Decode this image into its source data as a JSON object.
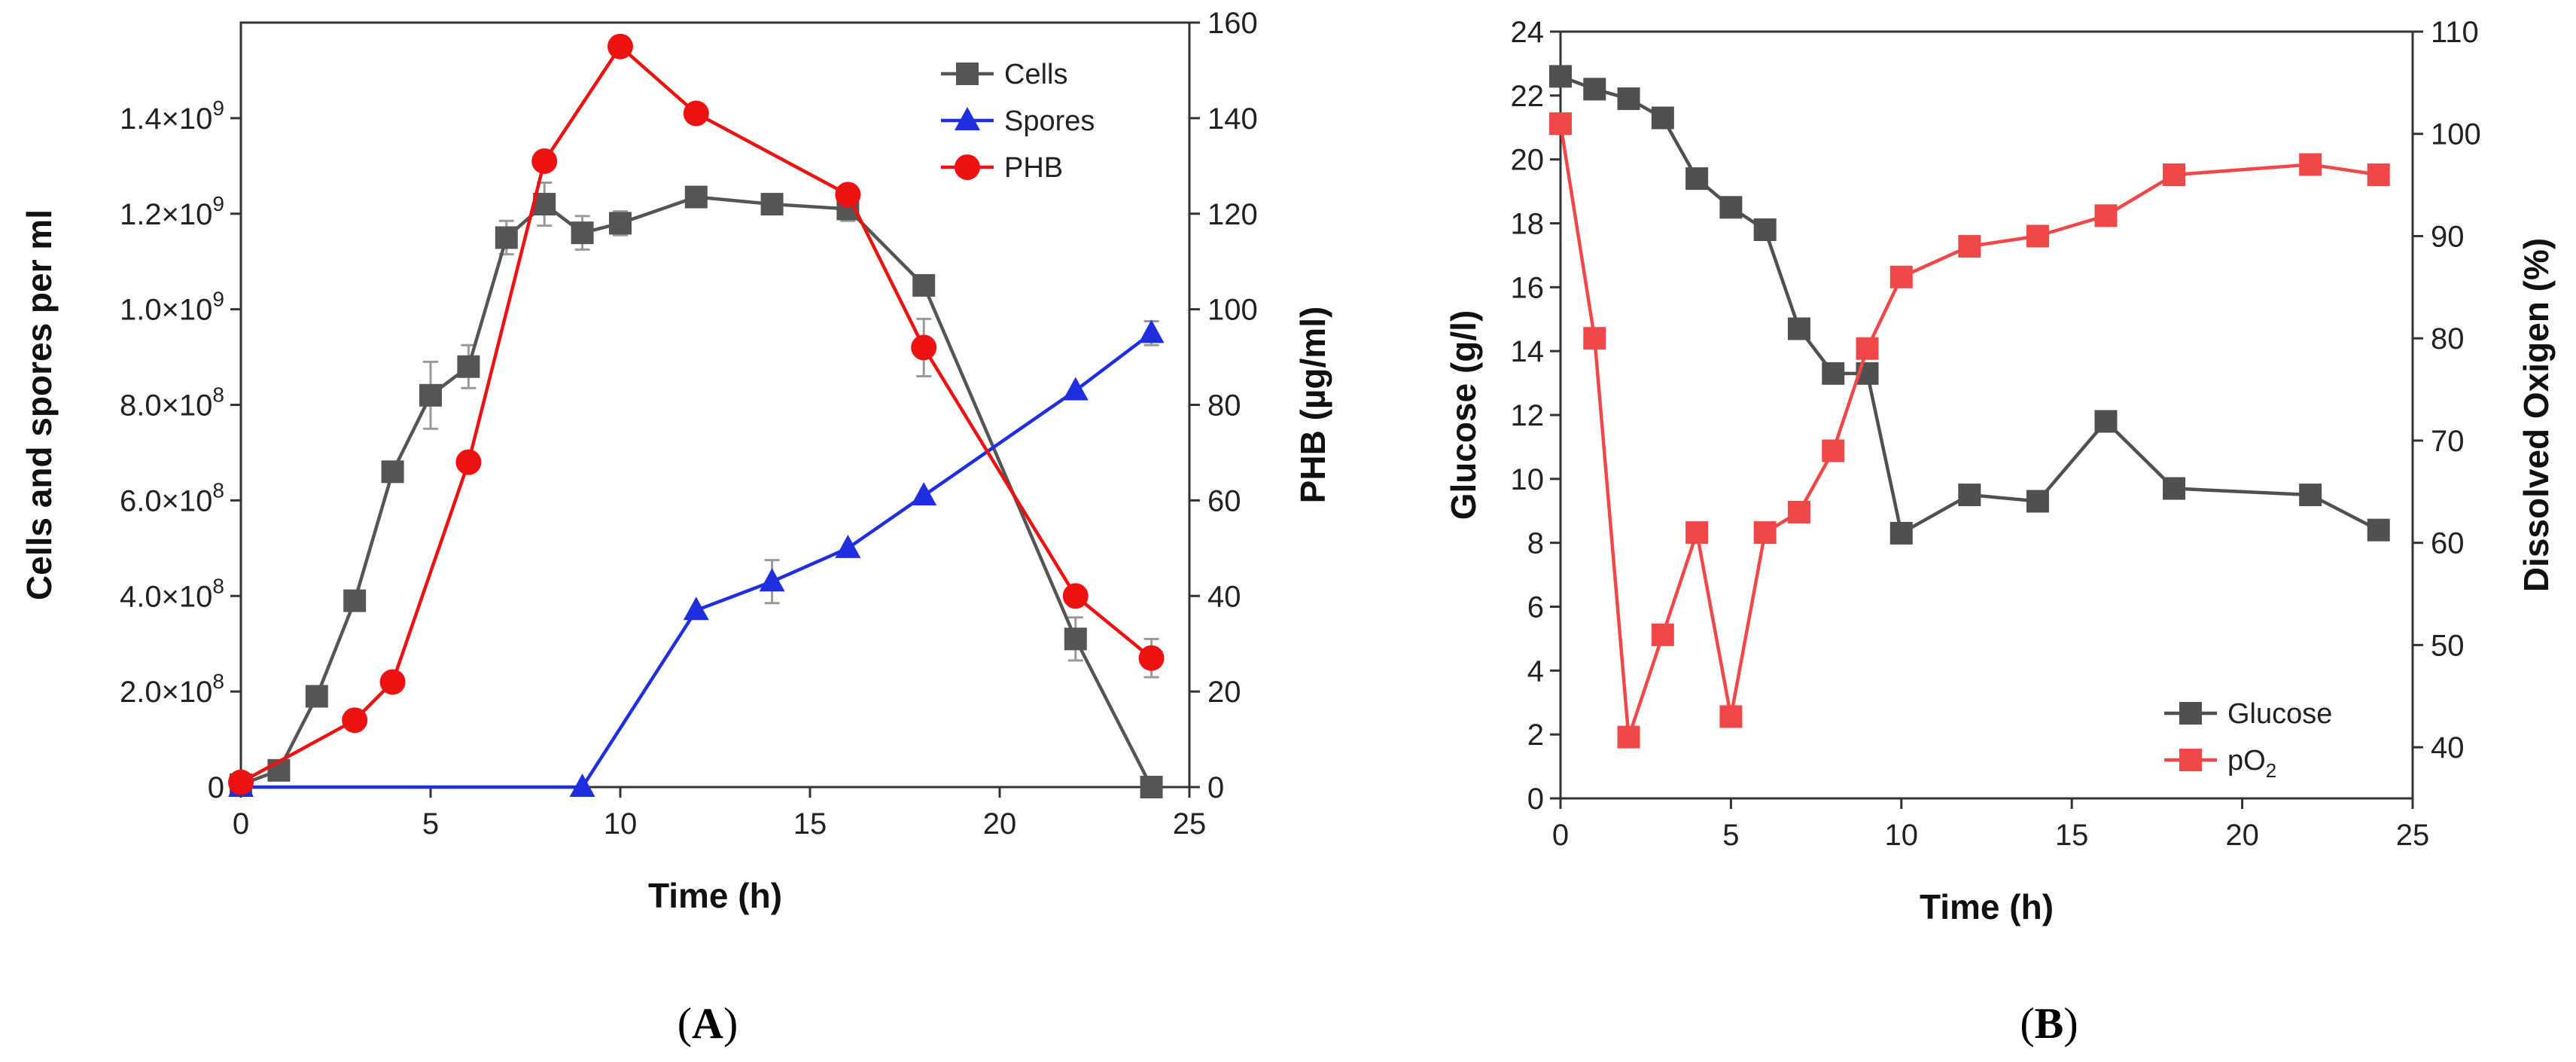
{
  "chart_data": [
    {
      "type": "line",
      "panel": "A",
      "panel_label": {
        "open": "(",
        "letter": "A",
        "close": ")"
      },
      "xlabel": "Time (h)",
      "ylabel": "Cells and spores per ml",
      "y2label": "PHB (µg/ml)",
      "xlim": [
        0,
        25
      ],
      "ylim": [
        0,
        1600000000.0
      ],
      "y2lim": [
        0,
        160
      ],
      "x_ticks": [
        0,
        5,
        10,
        15,
        20,
        25
      ],
      "x_tick_labels": [
        "0",
        "5",
        "10",
        "15",
        "20",
        "25"
      ],
      "y_ticks": [
        {
          "value": 0,
          "mant": "0",
          "exp": ""
        },
        {
          "value": 200000000,
          "mant": "2.0×10",
          "exp": "8"
        },
        {
          "value": 400000000,
          "mant": "4.0×10",
          "exp": "8"
        },
        {
          "value": 600000000,
          "mant": "6.0×10",
          "exp": "8"
        },
        {
          "value": 800000000,
          "mant": "8.0×10",
          "exp": "8"
        },
        {
          "value": 1000000000,
          "mant": "1.0×10",
          "exp": "9"
        },
        {
          "value": 1200000000,
          "mant": "1.2×10",
          "exp": "9"
        },
        {
          "value": 1400000000,
          "mant": "1.4×10",
          "exp": "9"
        }
      ],
      "y2_ticks": [
        0,
        20,
        40,
        60,
        80,
        100,
        120,
        140,
        160
      ],
      "y2_tick_labels": [
        "0",
        "20",
        "40",
        "60",
        "80",
        "100",
        "120",
        "140",
        "160"
      ],
      "legend_position": "top-right",
      "series": [
        {
          "name": "Cells",
          "axis": "left",
          "color": "#555555",
          "marker": "square",
          "x": [
            0,
            1,
            2,
            3,
            4,
            5,
            6,
            7,
            8,
            9,
            10,
            12,
            14,
            16,
            18,
            22,
            24
          ],
          "y": [
            5000000,
            35000000,
            190000000,
            390000000,
            660000000,
            820000000,
            880000000,
            1150000000,
            1220000000,
            1160000000,
            1180000000,
            1235000000,
            1220000000,
            1210000000,
            1050000000,
            310000000,
            0
          ],
          "err": [
            0,
            0,
            0,
            0,
            0,
            70000000,
            45000000,
            35000000,
            45000000,
            35000000,
            25000000,
            15000000,
            15000000,
            25000000,
            0,
            45000000,
            0
          ]
        },
        {
          "name": "Spores",
          "axis": "left",
          "color": "#1f2fe0",
          "marker": "triangle",
          "x": [
            0,
            9,
            12,
            14,
            16,
            18,
            22,
            24
          ],
          "y": [
            0,
            0,
            370000000,
            430000000,
            500000000,
            610000000,
            830000000,
            950000000
          ],
          "err": [
            0,
            0,
            0,
            45000000,
            0,
            0,
            0,
            25000000
          ]
        },
        {
          "name": "PHB",
          "axis": "right",
          "color": "#ee1111",
          "marker": "circle",
          "x": [
            0,
            3,
            4,
            6,
            8,
            10,
            12,
            16,
            18,
            22,
            24
          ],
          "y": [
            1,
            14,
            22,
            68,
            131,
            155,
            141,
            124,
            92,
            40,
            27
          ],
          "err": [
            0,
            0,
            0,
            0,
            0,
            0,
            2,
            0,
            6,
            0,
            4
          ]
        }
      ]
    },
    {
      "type": "line",
      "panel": "B",
      "panel_label": {
        "open": "(",
        "letter": "B",
        "close": ")"
      },
      "xlabel": "Time (h)",
      "ylabel": "Glucose (g/l)",
      "y2label": "Dissolved Oxigen (%)",
      "xlim": [
        0,
        25
      ],
      "ylim": [
        0,
        24
      ],
      "y2lim": [
        35,
        110
      ],
      "x_ticks": [
        0,
        5,
        10,
        15,
        20,
        25
      ],
      "x_tick_labels": [
        "0",
        "5",
        "10",
        "15",
        "20",
        "25"
      ],
      "y_ticks": [
        0,
        2,
        4,
        6,
        8,
        10,
        12,
        14,
        16,
        18,
        20,
        22,
        24
      ],
      "y_tick_labels": [
        "0",
        "2",
        "4",
        "6",
        "8",
        "10",
        "12",
        "14",
        "16",
        "18",
        "20",
        "22",
        "24"
      ],
      "y2_ticks": [
        40,
        50,
        60,
        70,
        80,
        90,
        100,
        110
      ],
      "y2_tick_labels": [
        "40",
        "50",
        "60",
        "70",
        "80",
        "90",
        "100",
        "110"
      ],
      "legend_position": "bottom-right",
      "series": [
        {
          "name": "Glucose",
          "name_sub": "",
          "axis": "left",
          "color": "#505050",
          "marker": "square",
          "x": [
            0,
            1,
            2,
            3,
            4,
            5,
            6,
            7,
            8,
            9,
            10,
            12,
            14,
            16,
            18,
            22,
            24
          ],
          "y": [
            22.6,
            22.2,
            21.9,
            21.3,
            19.4,
            18.5,
            17.8,
            14.7,
            13.3,
            13.3,
            8.3,
            9.5,
            9.3,
            11.8,
            9.7,
            9.5,
            8.4
          ]
        },
        {
          "name": "pO",
          "name_sub": "2",
          "axis": "right",
          "color": "#f04848",
          "marker": "square",
          "x": [
            0,
            1,
            2,
            3,
            4,
            5,
            6,
            7,
            8,
            9,
            10,
            12,
            14,
            16,
            18,
            22,
            24
          ],
          "y": [
            101,
            80,
            41,
            51,
            61,
            43,
            61,
            63,
            69,
            79,
            86,
            89,
            90,
            92,
            96,
            97,
            96
          ]
        }
      ]
    }
  ]
}
